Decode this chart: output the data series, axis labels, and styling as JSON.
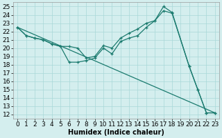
{
  "xlabel": "Humidex (Indice chaleur)",
  "xlim": [
    -0.5,
    23.5
  ],
  "ylim": [
    11.5,
    25.5
  ],
  "xticks": [
    0,
    1,
    2,
    3,
    4,
    5,
    6,
    7,
    8,
    9,
    10,
    11,
    12,
    13,
    14,
    15,
    16,
    17,
    18,
    19,
    20,
    21,
    22,
    23
  ],
  "yticks": [
    12,
    13,
    14,
    15,
    16,
    17,
    18,
    19,
    20,
    21,
    22,
    23,
    24,
    25
  ],
  "bg_color": "#d4eeee",
  "line_color": "#1a7a6e",
  "grid_color": "#a8d8d8",
  "line_diag": {
    "x": [
      0,
      23
    ],
    "y": [
      22.5,
      12.2
    ]
  },
  "line_lower": {
    "x": [
      0,
      1,
      2,
      3,
      4,
      5,
      6,
      7,
      8,
      9,
      10,
      11,
      12,
      13,
      14,
      15,
      16,
      17,
      18,
      20,
      21,
      22,
      23
    ],
    "y": [
      22.5,
      21.5,
      21.2,
      21.0,
      20.5,
      20.2,
      18.3,
      18.3,
      18.5,
      18.8,
      20.0,
      19.3,
      20.8,
      21.2,
      21.5,
      22.5,
      23.3,
      25.0,
      24.3,
      17.8,
      15.0,
      12.2,
      12.2
    ]
  },
  "line_upper": {
    "x": [
      0,
      1,
      2,
      3,
      4,
      5,
      6,
      7,
      8,
      9,
      10,
      11,
      12,
      13,
      14,
      15,
      16,
      17,
      18,
      20,
      21,
      22,
      23
    ],
    "y": [
      22.5,
      21.5,
      21.2,
      21.0,
      20.5,
      20.2,
      20.2,
      20.0,
      18.8,
      19.0,
      20.3,
      20.0,
      21.2,
      21.8,
      22.3,
      23.0,
      23.3,
      24.5,
      24.2,
      17.8,
      15.0,
      12.2,
      12.2
    ]
  },
  "font_size": 6.5
}
